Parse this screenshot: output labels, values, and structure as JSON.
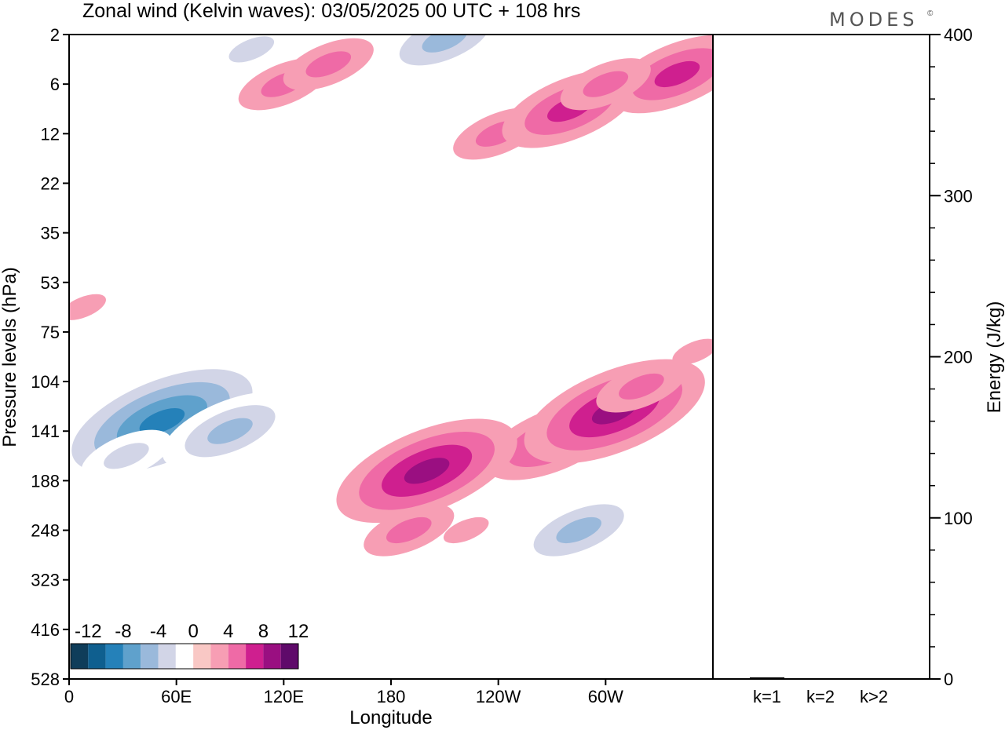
{
  "title": "Zonal wind (Kelvin waves):  03/05/2025  00 UTC  + 108 hrs",
  "brand": "MODES",
  "brand_mark": "©",
  "chart_data": [
    {
      "type": "heatmap",
      "xlabel": "Longitude",
      "ylabel": "Pressure levels (hPa)",
      "x_ticks": [
        {
          "lon": 0,
          "label": "0"
        },
        {
          "lon": 60,
          "label": "60E"
        },
        {
          "lon": 120,
          "label": "120E"
        },
        {
          "lon": 180,
          "label": "180"
        },
        {
          "lon": 240,
          "label": "120W"
        },
        {
          "lon": 300,
          "label": "60W"
        }
      ],
      "xlim": [
        0,
        360
      ],
      "y_ticks": [
        "2",
        "6",
        "12",
        "22",
        "35",
        "53",
        "75",
        "104",
        "141",
        "188",
        "248",
        "323",
        "416",
        "528"
      ],
      "colorbar": {
        "labels": [
          "-12",
          "-8",
          "-4",
          "0",
          "4",
          "8",
          "12"
        ],
        "levels": [
          -14,
          -12,
          -10,
          -8,
          -6,
          -4,
          -2,
          2,
          4,
          6,
          8,
          10,
          12,
          14
        ],
        "colors": [
          "#0f3d5a",
          "#0f5f8f",
          "#2581b9",
          "#5fa1cc",
          "#9ab9db",
          "#d2d5e7",
          "#ffffff",
          "#f9c8c5",
          "#f79eb4",
          "#ef6aa6",
          "#cf1f8f",
          "#9a0f81",
          "#5f0a6a"
        ]
      },
      "anomalies": [
        {
          "lon": 120,
          "level": 1,
          "value": 4
        },
        {
          "lon": 145,
          "level": 0.6,
          "value": 5
        },
        {
          "lon": 102,
          "level": 0.3,
          "value": -5
        },
        {
          "lon": 210,
          "level": 0.1,
          "value": -7
        },
        {
          "lon": 228,
          "level": 0.6,
          "value": -3
        },
        {
          "lon": 240,
          "level": 2,
          "value": 4
        },
        {
          "lon": 280,
          "level": 1.5,
          "value": 6
        },
        {
          "lon": 340,
          "level": 0.8,
          "value": 6
        },
        {
          "lon": 300,
          "level": 1.0,
          "value": 5
        },
        {
          "lon": 52,
          "level": 7.8,
          "value": -10
        },
        {
          "lon": 32,
          "level": 8.5,
          "value": -5
        },
        {
          "lon": 90,
          "level": 8.0,
          "value": -6
        },
        {
          "lon": 270,
          "level": 8.2,
          "value": 6
        },
        {
          "lon": 305,
          "level": 7.6,
          "value": 8
        },
        {
          "lon": 320,
          "level": 7.1,
          "value": 5
        },
        {
          "lon": 350,
          "level": 6.4,
          "value": 3
        },
        {
          "lon": 200,
          "level": 8.8,
          "value": 8
        },
        {
          "lon": 190,
          "level": 10,
          "value": 4
        },
        {
          "lon": 222,
          "level": 10,
          "value": 3
        },
        {
          "lon": 285,
          "level": 10,
          "value": -7
        },
        {
          "lon": 280,
          "level": 11,
          "value": -3
        },
        {
          "lon": 8,
          "level": 5.5,
          "value": 3
        }
      ]
    },
    {
      "type": "bar",
      "ylabel": "Energy (J/kg)",
      "categories": [
        "k=1",
        "k=2",
        "k>2"
      ],
      "values": [
        1,
        0,
        0.5
      ],
      "ylim": [
        0,
        400
      ],
      "y_ticks": [
        "0",
        "100",
        "200",
        "300",
        "400"
      ]
    }
  ]
}
